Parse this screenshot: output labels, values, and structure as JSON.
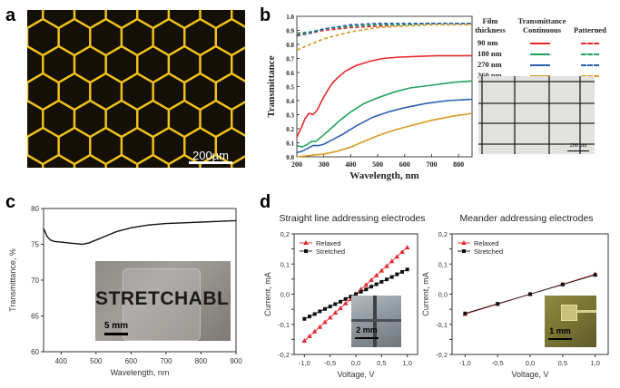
{
  "panels": {
    "a": {
      "letter": "a",
      "scale_label": "200µm",
      "colors": {
        "background": "#141008",
        "lines": "#f2c21a"
      }
    },
    "b": {
      "letter": "b",
      "inset_scale_label": "200 µm"
    },
    "c": {
      "letter": "c",
      "photo_text": "STRETCHABLE",
      "photo_scale_label": "5 mm"
    },
    "d": {
      "letter": "d",
      "left_inset_scale": "2 mm",
      "right_inset_scale": "1 mm"
    }
  },
  "chart_data": [
    {
      "id": "b",
      "type": "line",
      "xlabel": "Wavelength, nm",
      "ylabel": "Transmittance",
      "xlim": [
        200,
        850
      ],
      "ylim": [
        0,
        1.0
      ],
      "xticks": [
        200,
        300,
        400,
        500,
        600,
        700,
        800
      ],
      "yticks": [
        0.0,
        0.1,
        0.2,
        0.3,
        0.4,
        0.5,
        0.6,
        0.7,
        0.8,
        0.9,
        1.0
      ],
      "legend": {
        "header": [
          "Film thickness",
          "Transmittance Continuous",
          "Patterned"
        ],
        "rows": [
          "90 nm",
          "180 nm",
          "270 nm",
          "360 nm"
        ]
      },
      "series": [
        {
          "name": "90 nm",
          "style": "continuous",
          "color": "#e8272d",
          "x": [
            200,
            215,
            230,
            245,
            260,
            275,
            290,
            310,
            330,
            350,
            380,
            420,
            470,
            520,
            580,
            650,
            720,
            800,
            850
          ],
          "y": [
            0.14,
            0.2,
            0.27,
            0.31,
            0.3,
            0.33,
            0.39,
            0.46,
            0.52,
            0.56,
            0.61,
            0.65,
            0.68,
            0.7,
            0.71,
            0.715,
            0.72,
            0.72,
            0.72
          ]
        },
        {
          "name": "180 nm",
          "style": "continuous",
          "color": "#1fa25a",
          "x": [
            200,
            220,
            240,
            255,
            270,
            290,
            320,
            360,
            400,
            450,
            500,
            560,
            620,
            700,
            780,
            850
          ],
          "y": [
            0.08,
            0.07,
            0.09,
            0.11,
            0.11,
            0.14,
            0.19,
            0.26,
            0.32,
            0.38,
            0.42,
            0.46,
            0.49,
            0.51,
            0.53,
            0.54
          ]
        },
        {
          "name": "270 nm",
          "style": "continuous",
          "color": "#2b5fb0",
          "x": [
            200,
            220,
            240,
            260,
            280,
            300,
            330,
            370,
            420,
            480,
            540,
            600,
            680,
            760,
            850
          ],
          "y": [
            0.03,
            0.04,
            0.06,
            0.08,
            0.08,
            0.09,
            0.12,
            0.16,
            0.22,
            0.28,
            0.32,
            0.35,
            0.38,
            0.4,
            0.41
          ]
        },
        {
          "name": "360 nm",
          "style": "continuous",
          "color": "#d69a22",
          "x": [
            200,
            250,
            300,
            350,
            400,
            450,
            500,
            560,
            620,
            700,
            780,
            850
          ],
          "y": [
            0.0,
            0.01,
            0.02,
            0.04,
            0.07,
            0.11,
            0.15,
            0.19,
            0.22,
            0.26,
            0.29,
            0.31
          ]
        },
        {
          "name": "90 nm",
          "style": "patterned",
          "color": "#e8272d",
          "x": [
            200,
            250,
            300,
            400,
            500,
            600,
            700,
            850
          ],
          "y": [
            0.87,
            0.88,
            0.9,
            0.92,
            0.93,
            0.94,
            0.95,
            0.95
          ]
        },
        {
          "name": "180 nm",
          "style": "patterned",
          "color": "#1fa25a",
          "x": [
            200,
            250,
            300,
            400,
            500,
            600,
            700,
            850
          ],
          "y": [
            0.88,
            0.89,
            0.91,
            0.93,
            0.94,
            0.94,
            0.95,
            0.95
          ]
        },
        {
          "name": "270 nm",
          "style": "patterned",
          "color": "#2b5fb0",
          "x": [
            200,
            250,
            300,
            400,
            500,
            600,
            700,
            850
          ],
          "y": [
            0.86,
            0.88,
            0.91,
            0.94,
            0.95,
            0.95,
            0.95,
            0.95
          ]
        },
        {
          "name": "360 nm",
          "style": "patterned",
          "color": "#d69a22",
          "x": [
            200,
            250,
            300,
            400,
            500,
            600,
            700,
            850
          ],
          "y": [
            0.76,
            0.8,
            0.84,
            0.89,
            0.92,
            0.93,
            0.94,
            0.94
          ]
        }
      ]
    },
    {
      "id": "c",
      "type": "line",
      "xlabel": "Wavelength, nm",
      "ylabel": "Transmittance, %",
      "xlim": [
        350,
        900
      ],
      "ylim": [
        60,
        80
      ],
      "xticks": [
        400,
        500,
        600,
        700,
        800,
        900
      ],
      "yticks": [
        60,
        65,
        70,
        75,
        80
      ],
      "series": [
        {
          "color": "#111111",
          "x": [
            350,
            360,
            370,
            380,
            400,
            420,
            440,
            460,
            480,
            500,
            530,
            560,
            600,
            650,
            700,
            750,
            800,
            850,
            900
          ],
          "y": [
            77.2,
            76.1,
            75.6,
            75.4,
            75.3,
            75.2,
            75.1,
            75.0,
            75.2,
            75.6,
            76.2,
            76.8,
            77.3,
            77.7,
            77.9,
            78.0,
            78.1,
            78.2,
            78.3
          ]
        }
      ]
    },
    {
      "id": "d-left",
      "type": "line",
      "title": "Straight line addressing electrodes",
      "xlabel": "Voltage, V",
      "ylabel": "Current, mA",
      "xlim": [
        -1.2,
        1.2
      ],
      "ylim": [
        -0.2,
        0.2
      ],
      "xticks": [
        -1.0,
        -0.5,
        0.0,
        0.5,
        1.0
      ],
      "xtick_labels": [
        "-1,0",
        "-0,5",
        "0,0",
        "0,5",
        "1,0"
      ],
      "yticks": [
        -0.2,
        -0.15,
        -0.1,
        -0.05,
        0.0,
        0.05,
        0.1,
        0.15,
        0.2
      ],
      "ytick_labels": [
        "-0,2",
        "",
        "-0,1",
        "",
        "0,0",
        "",
        "0,1",
        "",
        "0,2"
      ],
      "series": [
        {
          "name": "Relaxed",
          "marker": "triangle",
          "color": "#e8272d",
          "x": [
            -1.0,
            -0.9,
            -0.8,
            -0.7,
            -0.6,
            -0.5,
            -0.4,
            -0.3,
            -0.2,
            -0.1,
            0.0,
            0.1,
            0.2,
            0.3,
            0.4,
            0.5,
            0.6,
            0.7,
            0.8,
            0.9,
            1.0
          ],
          "y": [
            -0.155,
            -0.14,
            -0.124,
            -0.109,
            -0.093,
            -0.078,
            -0.062,
            -0.047,
            -0.031,
            -0.016,
            0.0,
            0.016,
            0.031,
            0.047,
            0.062,
            0.078,
            0.093,
            0.109,
            0.124,
            0.14,
            0.155
          ]
        },
        {
          "name": "Stretched",
          "marker": "square",
          "color": "#111111",
          "x": [
            -1.0,
            -0.9,
            -0.8,
            -0.7,
            -0.6,
            -0.5,
            -0.4,
            -0.3,
            -0.2,
            -0.1,
            0.0,
            0.1,
            0.2,
            0.3,
            0.4,
            0.5,
            0.6,
            0.7,
            0.8,
            0.9,
            1.0
          ],
          "y": [
            -0.082,
            -0.074,
            -0.066,
            -0.057,
            -0.049,
            -0.041,
            -0.033,
            -0.025,
            -0.016,
            -0.008,
            0.0,
            0.008,
            0.016,
            0.025,
            0.033,
            0.041,
            0.049,
            0.057,
            0.066,
            0.074,
            0.082
          ]
        }
      ]
    },
    {
      "id": "d-right",
      "type": "line",
      "title": "Meander addressing electrodes",
      "xlabel": "Voltage, V",
      "ylabel": "Current, mA",
      "xlim": [
        -1.2,
        1.2
      ],
      "ylim": [
        -0.2,
        0.2
      ],
      "xticks": [
        -1.0,
        -0.5,
        0.0,
        0.5,
        1.0
      ],
      "xtick_labels": [
        "-1,0",
        "-0,5",
        "0,0",
        "0,5",
        "1,0"
      ],
      "yticks": [
        -0.2,
        -0.15,
        -0.1,
        -0.05,
        0.0,
        0.05,
        0.1,
        0.15,
        0.2
      ],
      "ytick_labels": [
        "-0,2",
        "",
        "-0,1",
        "",
        "0,0",
        "",
        "0,1",
        "",
        "0,2"
      ],
      "series": [
        {
          "name": "Relaxed",
          "marker": "triangle",
          "color": "#e8272d",
          "x": [
            -1.0,
            -0.5,
            0.0,
            0.5,
            1.0
          ],
          "y": [
            -0.066,
            -0.033,
            0.0,
            0.033,
            0.066
          ]
        },
        {
          "name": "Stretched",
          "marker": "square",
          "color": "#111111",
          "x": [
            -1.0,
            -0.5,
            0.0,
            0.5,
            1.0
          ],
          "y": [
            -0.064,
            -0.032,
            0.0,
            0.032,
            0.064
          ]
        }
      ]
    }
  ]
}
